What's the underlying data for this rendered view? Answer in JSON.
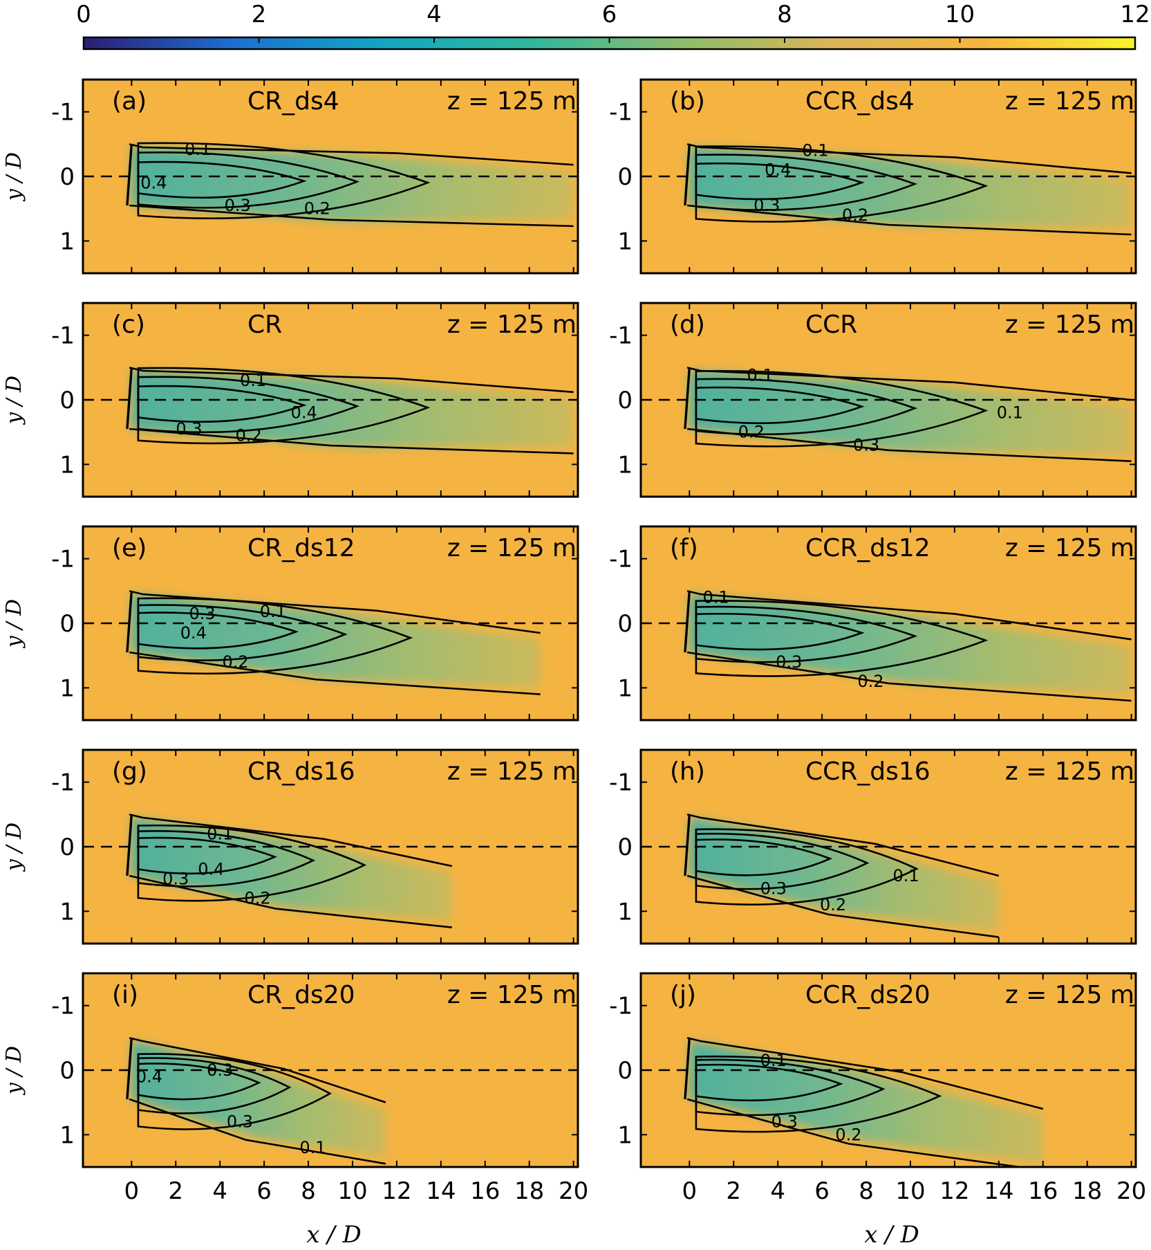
{
  "chart_data": {
    "type": "heatmap",
    "colorbar": {
      "ticks": [
        "0",
        "2",
        "4",
        "6",
        "8",
        "10",
        "12"
      ],
      "range": [
        0,
        12
      ],
      "colors": [
        "#2b1f72",
        "#1f6fd0",
        "#12a7c1",
        "#33b89d",
        "#8fbd6c",
        "#dcb55a",
        "#f6b63e",
        "#fbf52a"
      ]
    },
    "field_color": "#f5b342",
    "wake_color": "#5bb5a0",
    "xlabel": "x / D",
    "ylabel": "y / D",
    "x_ticks": [
      "0",
      "2",
      "4",
      "6",
      "8",
      "10",
      "12",
      "14",
      "16",
      "18",
      "20"
    ],
    "y_ticks": [
      "-1",
      "0",
      "1"
    ],
    "xlim": [
      -2.2,
      20.2
    ],
    "ylim": [
      1.5,
      -1.5
    ],
    "panels": [
      {
        "tag": "(a)",
        "case": "CR_ds4",
        "height": "z = 125 m",
        "wake_length": 20,
        "deflection": 0.12,
        "contour_labels": [
          {
            "t": "0.1",
            "x": 3,
            "y": -0.42
          },
          {
            "t": "0.4",
            "x": 1,
            "y": 0.1
          },
          {
            "t": "0.3",
            "x": 4.8,
            "y": 0.45
          },
          {
            "t": "0.2",
            "x": 8.4,
            "y": 0.5
          }
        ]
      },
      {
        "tag": "(b)",
        "case": "CCR_ds4",
        "height": "z = 125 m",
        "wake_length": 20,
        "deflection": 0.25,
        "contour_labels": [
          {
            "t": "0.1",
            "x": 5.7,
            "y": -0.4
          },
          {
            "t": "0.4",
            "x": 4,
            "y": -0.1
          },
          {
            "t": "0.3",
            "x": 3.5,
            "y": 0.45
          },
          {
            "t": "0.2",
            "x": 7.5,
            "y": 0.6
          }
        ]
      },
      {
        "tag": "(c)",
        "case": "CR",
        "height": "z = 125 m",
        "wake_length": 20,
        "deflection": 0.18,
        "contour_labels": [
          {
            "t": "0.1",
            "x": 5.5,
            "y": -0.3
          },
          {
            "t": "0.4",
            "x": 7.8,
            "y": 0.2
          },
          {
            "t": "0.3",
            "x": 2.6,
            "y": 0.45
          },
          {
            "t": "0.2",
            "x": 5.3,
            "y": 0.55
          }
        ]
      },
      {
        "tag": "(d)",
        "case": "CCR",
        "height": "z = 125 m",
        "wake_length": 20,
        "deflection": 0.3,
        "contour_labels": [
          {
            "t": "0.1",
            "x": 3.2,
            "y": -0.38
          },
          {
            "t": "0.1",
            "x": 14.5,
            "y": 0.2
          },
          {
            "t": "0.2",
            "x": 2.8,
            "y": 0.5
          },
          {
            "t": "0.3",
            "x": 8,
            "y": 0.7
          }
        ]
      },
      {
        "tag": "(e)",
        "case": "CR_ds12",
        "height": "z = 125 m",
        "wake_length": 18.5,
        "deflection": 0.45,
        "contour_labels": [
          {
            "t": "0.3",
            "x": 3.2,
            "y": -0.15
          },
          {
            "t": "0.1",
            "x": 6.4,
            "y": -0.18
          },
          {
            "t": "0.4",
            "x": 2.8,
            "y": 0.15
          },
          {
            "t": "0.2",
            "x": 4.7,
            "y": 0.6
          }
        ]
      },
      {
        "tag": "(f)",
        "case": "CCR_ds12",
        "height": "z = 125 m",
        "wake_length": 20,
        "deflection": 0.55,
        "contour_labels": [
          {
            "t": "0.1",
            "x": 1.2,
            "y": -0.4
          },
          {
            "t": "0.3",
            "x": 4.5,
            "y": 0.6
          },
          {
            "t": "0.2",
            "x": 8.2,
            "y": 0.9
          }
        ]
      },
      {
        "tag": "(g)",
        "case": "CR_ds16",
        "height": "z = 125 m",
        "wake_length": 14.5,
        "deflection": 0.6,
        "contour_labels": [
          {
            "t": "0.1",
            "x": 4,
            "y": -0.2
          },
          {
            "t": "0.4",
            "x": 3.6,
            "y": 0.35
          },
          {
            "t": "0.3",
            "x": 2,
            "y": 0.5
          },
          {
            "t": "0.2",
            "x": 5.7,
            "y": 0.8
          }
        ]
      },
      {
        "tag": "(h)",
        "case": "CCR_ds16",
        "height": "z = 125 m",
        "wake_length": 14,
        "deflection": 0.75,
        "contour_labels": [
          {
            "t": "0.1",
            "x": 9.8,
            "y": 0.45
          },
          {
            "t": "0.3",
            "x": 3.8,
            "y": 0.65
          },
          {
            "t": "0.2",
            "x": 6.5,
            "y": 0.9
          }
        ]
      },
      {
        "tag": "(i)",
        "case": "CR_ds20",
        "height": "z = 125 m",
        "wake_length": 11.5,
        "deflection": 0.8,
        "contour_labels": [
          {
            "t": "0.4",
            "x": 0.8,
            "y": 0.1
          },
          {
            "t": "0.3",
            "x": 4,
            "y": 0
          },
          {
            "t": "0.3",
            "x": 4.9,
            "y": 0.8
          },
          {
            "t": "0.1",
            "x": 8.2,
            "y": 1.2
          }
        ]
      },
      {
        "tag": "(j)",
        "case": "CCR_ds20",
        "height": "z = 125 m",
        "wake_length": 16,
        "deflection": 0.9,
        "contour_labels": [
          {
            "t": "0.1",
            "x": 3.8,
            "y": -0.15
          },
          {
            "t": "0.3",
            "x": 4.3,
            "y": 0.8
          },
          {
            "t": "0.2",
            "x": 7.2,
            "y": 1.0
          }
        ]
      }
    ]
  }
}
